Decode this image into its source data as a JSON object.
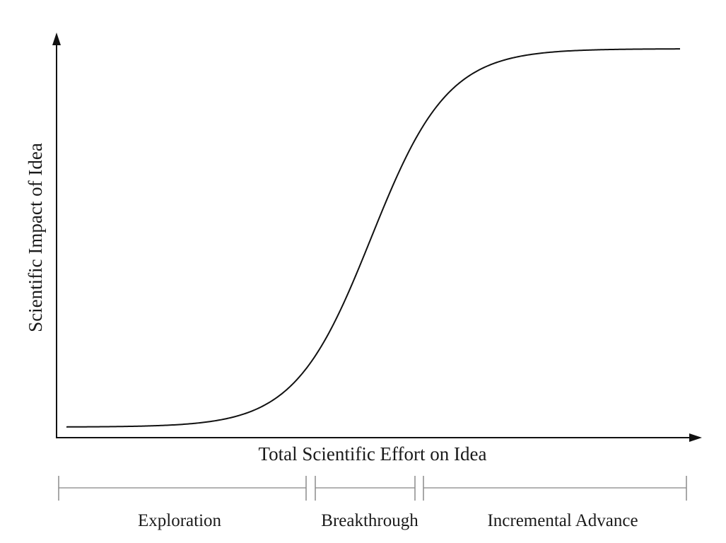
{
  "figure": {
    "x_axis_label": "Total Scientific Effort on Idea",
    "y_axis_label": "Scientific Impact of Idea",
    "curve_shape": "logistic-s-curve",
    "colors": {
      "axes": "#111111",
      "curve": "#111111",
      "phase_bracket": "#9a9a9a"
    },
    "phases": [
      {
        "label": "Exploration"
      },
      {
        "label": "Breakthrough"
      },
      {
        "label": "Incremental Advance"
      }
    ]
  }
}
